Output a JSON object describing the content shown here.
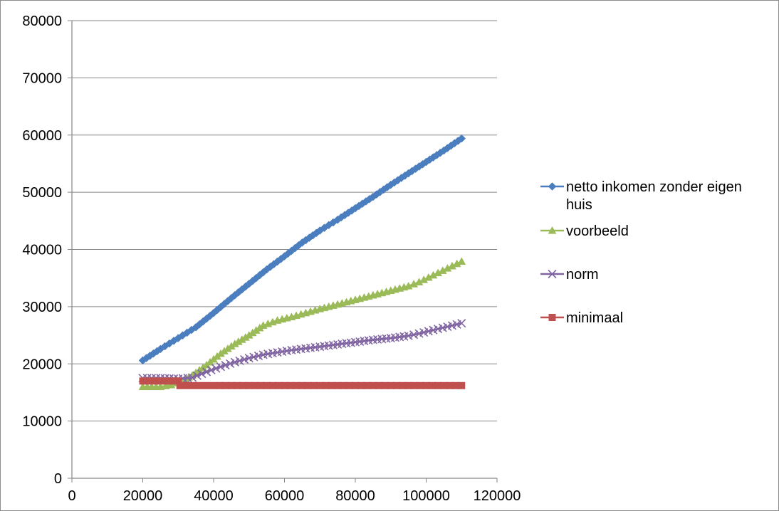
{
  "chart_data": {
    "type": "line",
    "title": "",
    "xlabel": "",
    "ylabel": "",
    "xlim": [
      0,
      120000
    ],
    "ylim": [
      0,
      80000
    ],
    "x_ticks": [
      0,
      20000,
      40000,
      60000,
      80000,
      100000,
      120000
    ],
    "y_ticks": [
      0,
      10000,
      20000,
      30000,
      40000,
      50000,
      60000,
      70000,
      80000
    ],
    "x_tick_labels": [
      "0",
      "20000",
      "40000",
      "60000",
      "80000",
      "100000",
      "120000"
    ],
    "y_tick_labels": [
      "0",
      "10000",
      "20000",
      "30000",
      "40000",
      "50000",
      "60000",
      "70000",
      "80000"
    ],
    "grid": "horizontal",
    "legend_position": "right",
    "series": [
      {
        "name": "netto inkomen zonder eigen huis",
        "legend_lines": [
          "netto inkomen zonder eigen",
          "huis"
        ],
        "color": "#4a7ebf",
        "marker": "diamond",
        "points": [
          [
            20000,
            20600
          ],
          [
            25000,
            22600
          ],
          [
            30000,
            24500
          ],
          [
            35000,
            26400
          ],
          [
            40000,
            28900
          ],
          [
            45000,
            31500
          ],
          [
            50000,
            34000
          ],
          [
            55000,
            36500
          ],
          [
            60000,
            38800
          ],
          [
            65000,
            41200
          ],
          [
            70000,
            43300
          ],
          [
            75000,
            45200
          ],
          [
            80000,
            47200
          ],
          [
            85000,
            49200
          ],
          [
            90000,
            51300
          ],
          [
            95000,
            53300
          ],
          [
            100000,
            55300
          ],
          [
            105000,
            57300
          ],
          [
            110000,
            59400
          ]
        ]
      },
      {
        "name": "voorbeeld",
        "legend_lines": [
          "voorbeeld"
        ],
        "color": "#9bbb59",
        "marker": "triangle",
        "points": [
          [
            20000,
            16000
          ],
          [
            25000,
            16000
          ],
          [
            28000,
            16300
          ],
          [
            31000,
            17000
          ],
          [
            34000,
            18000
          ],
          [
            38000,
            19800
          ],
          [
            42000,
            21800
          ],
          [
            46000,
            23500
          ],
          [
            50000,
            25000
          ],
          [
            54000,
            26700
          ],
          [
            58000,
            27600
          ],
          [
            62000,
            28200
          ],
          [
            66000,
            28900
          ],
          [
            70000,
            29600
          ],
          [
            75000,
            30400
          ],
          [
            80000,
            31200
          ],
          [
            85000,
            32000
          ],
          [
            90000,
            32800
          ],
          [
            95000,
            33600
          ],
          [
            98000,
            34300
          ],
          [
            102000,
            35500
          ],
          [
            106000,
            36700
          ],
          [
            110000,
            37900
          ]
        ]
      },
      {
        "name": "norm",
        "legend_lines": [
          "norm"
        ],
        "color": "#8064a2",
        "marker": "x",
        "points": [
          [
            20000,
            17500
          ],
          [
            25000,
            17500
          ],
          [
            30000,
            17400
          ],
          [
            34000,
            17600
          ],
          [
            38000,
            18600
          ],
          [
            42000,
            19500
          ],
          [
            46000,
            20300
          ],
          [
            50000,
            21000
          ],
          [
            54000,
            21600
          ],
          [
            58000,
            22000
          ],
          [
            62000,
            22400
          ],
          [
            66000,
            22700
          ],
          [
            70000,
            23000
          ],
          [
            75000,
            23400
          ],
          [
            80000,
            23800
          ],
          [
            85000,
            24200
          ],
          [
            90000,
            24500
          ],
          [
            95000,
            24900
          ],
          [
            98000,
            25300
          ],
          [
            102000,
            25900
          ],
          [
            106000,
            26500
          ],
          [
            110000,
            27100
          ]
        ]
      },
      {
        "name": "minimaal",
        "legend_lines": [
          "minimaal"
        ],
        "color": "#c0504d",
        "marker": "square",
        "points": [
          [
            20000,
            17000
          ],
          [
            25000,
            17000
          ],
          [
            30000,
            17000
          ],
          [
            30500,
            16200
          ],
          [
            40000,
            16200
          ],
          [
            50000,
            16200
          ],
          [
            60000,
            16200
          ],
          [
            70000,
            16200
          ],
          [
            80000,
            16200
          ],
          [
            90000,
            16200
          ],
          [
            100000,
            16200
          ],
          [
            110000,
            16200
          ]
        ]
      }
    ]
  }
}
